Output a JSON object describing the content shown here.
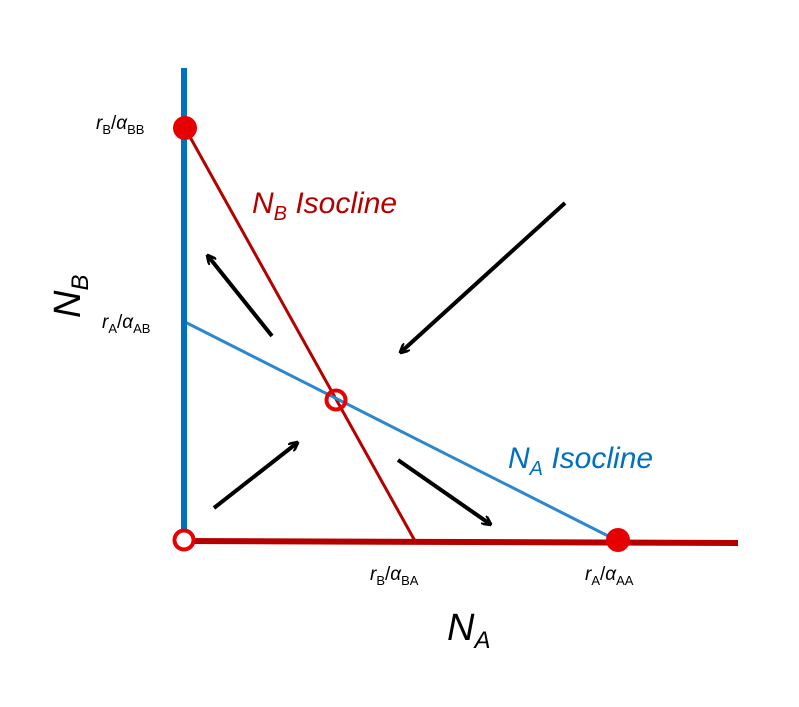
{
  "colors": {
    "red": "#d40000",
    "dark_red": "#b50000",
    "blue": "#0070c0",
    "blue_line": "#2b87cf",
    "arrow": "#000000"
  },
  "axes": {
    "x_title": {
      "main": "N",
      "sub": "A"
    },
    "y_title": {
      "main": "N",
      "sub": "B"
    }
  },
  "labels": {
    "rB_alphaBB": {
      "r": "r",
      "r_sub": "B",
      "slash": "/",
      "alpha": "α",
      "alpha_sub": "BB"
    },
    "rA_alphaAB": {
      "r": "r",
      "r_sub": "A",
      "slash": "/",
      "alpha": "α",
      "alpha_sub": "AB"
    },
    "rB_alphaBA": {
      "r": "r",
      "r_sub": "B",
      "slash": "/",
      "alpha": "α",
      "alpha_sub": "BA"
    },
    "rA_alphaAA": {
      "r": "r",
      "r_sub": "A",
      "slash": "/",
      "alpha": "α",
      "alpha_sub": "AA"
    }
  },
  "isoclines": {
    "nb": {
      "main": "N",
      "sub": "B",
      "rest": " Isocline"
    },
    "na": {
      "main": "N",
      "sub": "A",
      "rest": " Isocline"
    }
  },
  "equilibria": {
    "stable": [
      "B-only equilibrium (filled)",
      "A-only equilibrium (filled)"
    ],
    "unstable": [
      "origin (open)",
      "coexistence point (open)"
    ]
  }
}
